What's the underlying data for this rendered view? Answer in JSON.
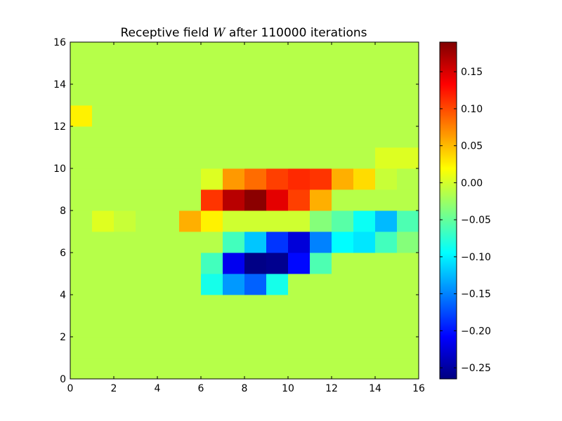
{
  "chart_data": {
    "type": "heatmap",
    "title_prefix": "Receptive field ",
    "title_math": "W",
    "title_suffix": " after 110000 iterations",
    "xlim": [
      0,
      16
    ],
    "ylim": [
      0,
      16
    ],
    "x_ticks": [
      "0",
      "2",
      "4",
      "6",
      "8",
      "10",
      "12",
      "14",
      "16"
    ],
    "y_ticks": [
      "0",
      "2",
      "4",
      "6",
      "8",
      "10",
      "12",
      "14",
      "16"
    ],
    "grid": false,
    "colormap": "jet",
    "color_range": [
      -0.265,
      0.19
    ],
    "colorbar_ticks": [
      {
        "value": 0.15,
        "label": "0.15"
      },
      {
        "value": 0.1,
        "label": "0.10"
      },
      {
        "value": 0.05,
        "label": "0.05"
      },
      {
        "value": 0.0,
        "label": "0.00"
      },
      {
        "value": -0.05,
        "label": "−0.05"
      },
      {
        "value": -0.1,
        "label": "−0.10"
      },
      {
        "value": -0.15,
        "label": "−0.15"
      },
      {
        "value": -0.2,
        "label": "−0.20"
      },
      {
        "value": -0.25,
        "label": "−0.25"
      }
    ],
    "background_value": -0.013,
    "cells": [
      {
        "col": 0,
        "row": 12,
        "v": 0.025
      },
      {
        "col": 14,
        "row": 10,
        "v": 0.004
      },
      {
        "col": 15,
        "row": 10,
        "v": 0.004
      },
      {
        "col": 6,
        "row": 9,
        "v": 0.004
      },
      {
        "col": 7,
        "row": 9,
        "v": 0.065
      },
      {
        "col": 8,
        "row": 9,
        "v": 0.085
      },
      {
        "col": 9,
        "row": 9,
        "v": 0.105
      },
      {
        "col": 10,
        "row": 9,
        "v": 0.115
      },
      {
        "col": 11,
        "row": 9,
        "v": 0.11
      },
      {
        "col": 12,
        "row": 9,
        "v": 0.055
      },
      {
        "col": 13,
        "row": 9,
        "v": 0.035
      },
      {
        "col": 14,
        "row": 9,
        "v": -0.005
      },
      {
        "col": 6,
        "row": 8,
        "v": 0.11
      },
      {
        "col": 7,
        "row": 8,
        "v": 0.165
      },
      {
        "col": 8,
        "row": 8,
        "v": 0.185
      },
      {
        "col": 9,
        "row": 8,
        "v": 0.145
      },
      {
        "col": 10,
        "row": 8,
        "v": 0.105
      },
      {
        "col": 11,
        "row": 8,
        "v": 0.055
      },
      {
        "col": 1,
        "row": 7,
        "v": 0.005
      },
      {
        "col": 2,
        "row": 7,
        "v": -0.005
      },
      {
        "col": 5,
        "row": 7,
        "v": 0.055
      },
      {
        "col": 6,
        "row": 7,
        "v": 0.025
      },
      {
        "col": 7,
        "row": 7,
        "v": -0.002
      },
      {
        "col": 8,
        "row": 7,
        "v": -0.002
      },
      {
        "col": 9,
        "row": 7,
        "v": -0.002
      },
      {
        "col": 10,
        "row": 7,
        "v": -0.002
      },
      {
        "col": 11,
        "row": 7,
        "v": -0.035
      },
      {
        "col": 12,
        "row": 7,
        "v": -0.055
      },
      {
        "col": 13,
        "row": 7,
        "v": -0.09
      },
      {
        "col": 14,
        "row": 7,
        "v": -0.125
      },
      {
        "col": 15,
        "row": 7,
        "v": -0.06
      },
      {
        "col": 7,
        "row": 6,
        "v": -0.065
      },
      {
        "col": 8,
        "row": 6,
        "v": -0.12
      },
      {
        "col": 9,
        "row": 6,
        "v": -0.185
      },
      {
        "col": 10,
        "row": 6,
        "v": -0.225
      },
      {
        "col": 11,
        "row": 6,
        "v": -0.15
      },
      {
        "col": 12,
        "row": 6,
        "v": -0.095
      },
      {
        "col": 13,
        "row": 6,
        "v": -0.105
      },
      {
        "col": 14,
        "row": 6,
        "v": -0.065
      },
      {
        "col": 15,
        "row": 6,
        "v": -0.035
      },
      {
        "col": 6,
        "row": 5,
        "v": -0.065
      },
      {
        "col": 7,
        "row": 5,
        "v": -0.215
      },
      {
        "col": 8,
        "row": 5,
        "v": -0.262
      },
      {
        "col": 9,
        "row": 5,
        "v": -0.258
      },
      {
        "col": 10,
        "row": 5,
        "v": -0.205
      },
      {
        "col": 11,
        "row": 5,
        "v": -0.06
      },
      {
        "col": 6,
        "row": 4,
        "v": -0.085
      },
      {
        "col": 7,
        "row": 4,
        "v": -0.14
      },
      {
        "col": 8,
        "row": 4,
        "v": -0.165
      },
      {
        "col": 9,
        "row": 4,
        "v": -0.085
      }
    ]
  }
}
